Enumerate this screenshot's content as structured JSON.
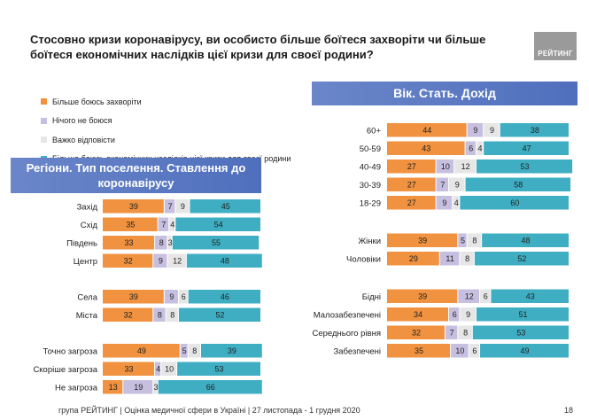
{
  "title": "Стосовно кризи коронавірусу, ви особисто більше боїтеся захворіти чи більше боїтеся економічних наслідків цієї кризи для своєї родини?",
  "logo_text": "РЕЙТИНГ",
  "header_right": "Вік. Стать. Дохід",
  "header_left": "Регіони. Тип поселення. Ставлення до коронавірусу",
  "footer": "група РЕЙТИНГ  |  Оцінка медичної сфери в Україні  |  27 листопада - 1 грудня 2020",
  "page_number": "18",
  "colors": {
    "sick": "#f0923f",
    "none": "#c7bfe0",
    "hard": "#e6e6e6",
    "econ": "#3faec3"
  },
  "chart_data": {
    "type": "bar",
    "stacked": true,
    "orientation": "horizontal",
    "series_names": [
      "Більше боюсь захворіти",
      "Нічого не боюся",
      "Важко відповісти",
      "Більше боюсь економічних наслідків цієї кризи для своєї родини"
    ],
    "groups": [
      {
        "panel": "left",
        "rows": [
          {
            "label": "Захід",
            "values": [
              39,
              7,
              9,
              45
            ]
          },
          {
            "label": "Схід",
            "values": [
              35,
              7,
              4,
              54
            ]
          },
          {
            "label": "Південь",
            "values": [
              33,
              8,
              3,
              55
            ]
          },
          {
            "label": "Центр",
            "values": [
              32,
              9,
              12,
              48
            ]
          }
        ]
      },
      {
        "panel": "left",
        "rows": [
          {
            "label": "Села",
            "values": [
              39,
              9,
              6,
              46
            ]
          },
          {
            "label": "Міста",
            "values": [
              32,
              8,
              8,
              52
            ]
          }
        ]
      },
      {
        "panel": "left",
        "rows": [
          {
            "label": "Точно загроза",
            "values": [
              49,
              5,
              8,
              39
            ]
          },
          {
            "label": "Скоріше загроза",
            "values": [
              33,
              4,
              10,
              53
            ]
          },
          {
            "label": "Не загроза",
            "values": [
              13,
              19,
              3,
              66
            ]
          }
        ]
      },
      {
        "panel": "right",
        "rows": [
          {
            "label": "60+",
            "values": [
              44,
              9,
              9,
              38
            ]
          },
          {
            "label": "50-59",
            "values": [
              43,
              6,
              4,
              47
            ]
          },
          {
            "label": "40-49",
            "values": [
              27,
              10,
              12,
              53
            ]
          },
          {
            "label": "30-39",
            "values": [
              27,
              7,
              9,
              58
            ]
          },
          {
            "label": "18-29",
            "values": [
              27,
              9,
              4,
              60
            ]
          }
        ]
      },
      {
        "panel": "right",
        "rows": [
          {
            "label": "Жінки",
            "values": [
              39,
              5,
              8,
              48
            ]
          },
          {
            "label": "Чоловіки",
            "values": [
              29,
              11,
              8,
              52
            ]
          }
        ]
      },
      {
        "panel": "right",
        "rows": [
          {
            "label": "Бідні",
            "values": [
              39,
              12,
              6,
              43
            ]
          },
          {
            "label": "Малозабезпечені",
            "values": [
              34,
              6,
              9,
              51
            ]
          },
          {
            "label": "Середнього рівня",
            "values": [
              32,
              7,
              8,
              53
            ]
          },
          {
            "label": "Забезпечені",
            "values": [
              35,
              10,
              6,
              49
            ]
          }
        ]
      }
    ]
  }
}
